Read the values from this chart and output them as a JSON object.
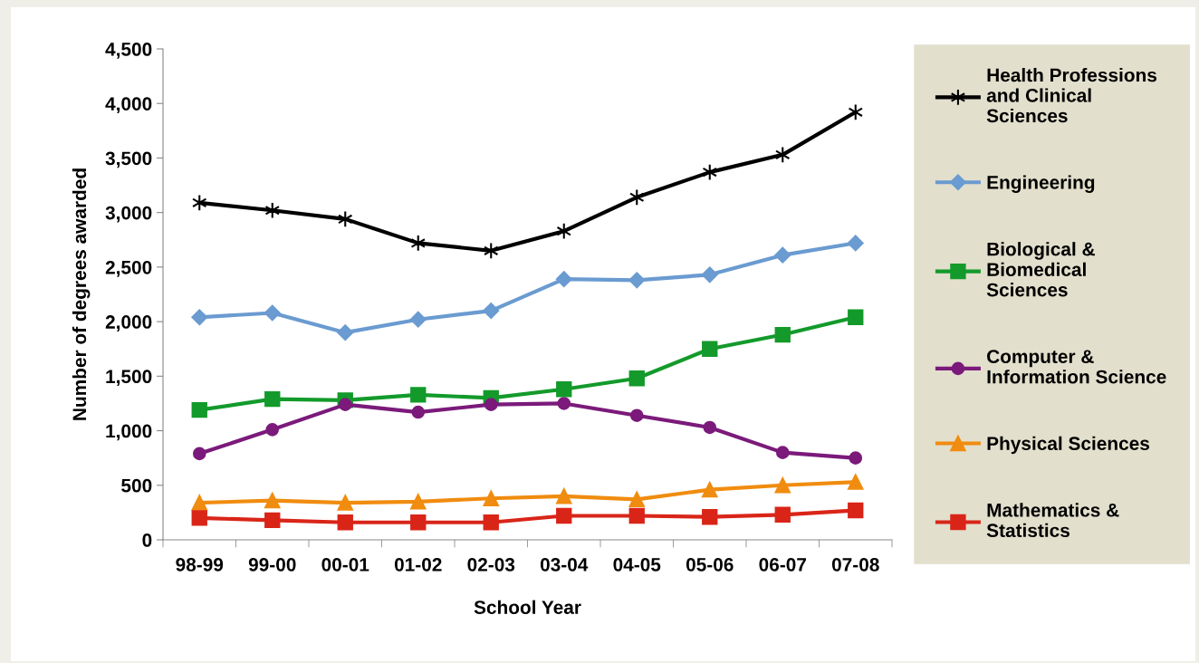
{
  "chart_data": {
    "type": "line",
    "xlabel": "School Year",
    "ylabel": "Number of degrees awarded",
    "categories": [
      "98-99",
      "99-00",
      "00-01",
      "01-02",
      "02-03",
      "03-04",
      "04-05",
      "05-06",
      "06-07",
      "07-08"
    ],
    "ylim": [
      0,
      4500
    ],
    "yticks": [
      {
        "value": 0,
        "label": "0"
      },
      {
        "value": 500,
        "label": "500"
      },
      {
        "value": 1000,
        "label": "1,000"
      },
      {
        "value": 1500,
        "label": "1,500"
      },
      {
        "value": 2000,
        "label": "2,000"
      },
      {
        "value": 2500,
        "label": "2,500"
      },
      {
        "value": 3000,
        "label": "3,000"
      },
      {
        "value": 3500,
        "label": "3,500"
      },
      {
        "value": 4000,
        "label": "4,000"
      },
      {
        "value": 4500,
        "label": "4,500"
      }
    ],
    "grid": false,
    "legend": "right",
    "line_style": "solid",
    "series": [
      {
        "name": "Health Professions\nand Clinical\nSciences",
        "color": "#000000",
        "marker": "cross",
        "values": [
          3090,
          3020,
          2940,
          2720,
          2650,
          2830,
          3140,
          3370,
          3530,
          3920
        ]
      },
      {
        "name": "Engineering",
        "color": "#6a9bd1",
        "marker": "diamond",
        "values": [
          2040,
          2080,
          1900,
          2020,
          2100,
          2390,
          2380,
          2430,
          2610,
          2720
        ]
      },
      {
        "name": "Biological &\nBiomedical\nSciences",
        "color": "#139a2b",
        "marker": "square",
        "values": [
          1190,
          1290,
          1280,
          1330,
          1300,
          1380,
          1480,
          1750,
          1880,
          2040
        ]
      },
      {
        "name": "Computer &\nInformation Science",
        "color": "#7b1a7b",
        "marker": "circle",
        "values": [
          790,
          1010,
          1240,
          1170,
          1240,
          1250,
          1140,
          1030,
          800,
          750
        ]
      },
      {
        "name": "Physical Sciences",
        "color": "#f08c0f",
        "marker": "triangle",
        "values": [
          340,
          360,
          340,
          350,
          380,
          400,
          370,
          460,
          500,
          530
        ]
      },
      {
        "name": "Mathematics &\nStatistics",
        "color": "#d92518",
        "marker": "square",
        "values": [
          200,
          180,
          160,
          160,
          160,
          220,
          220,
          210,
          230,
          270
        ]
      }
    ]
  }
}
